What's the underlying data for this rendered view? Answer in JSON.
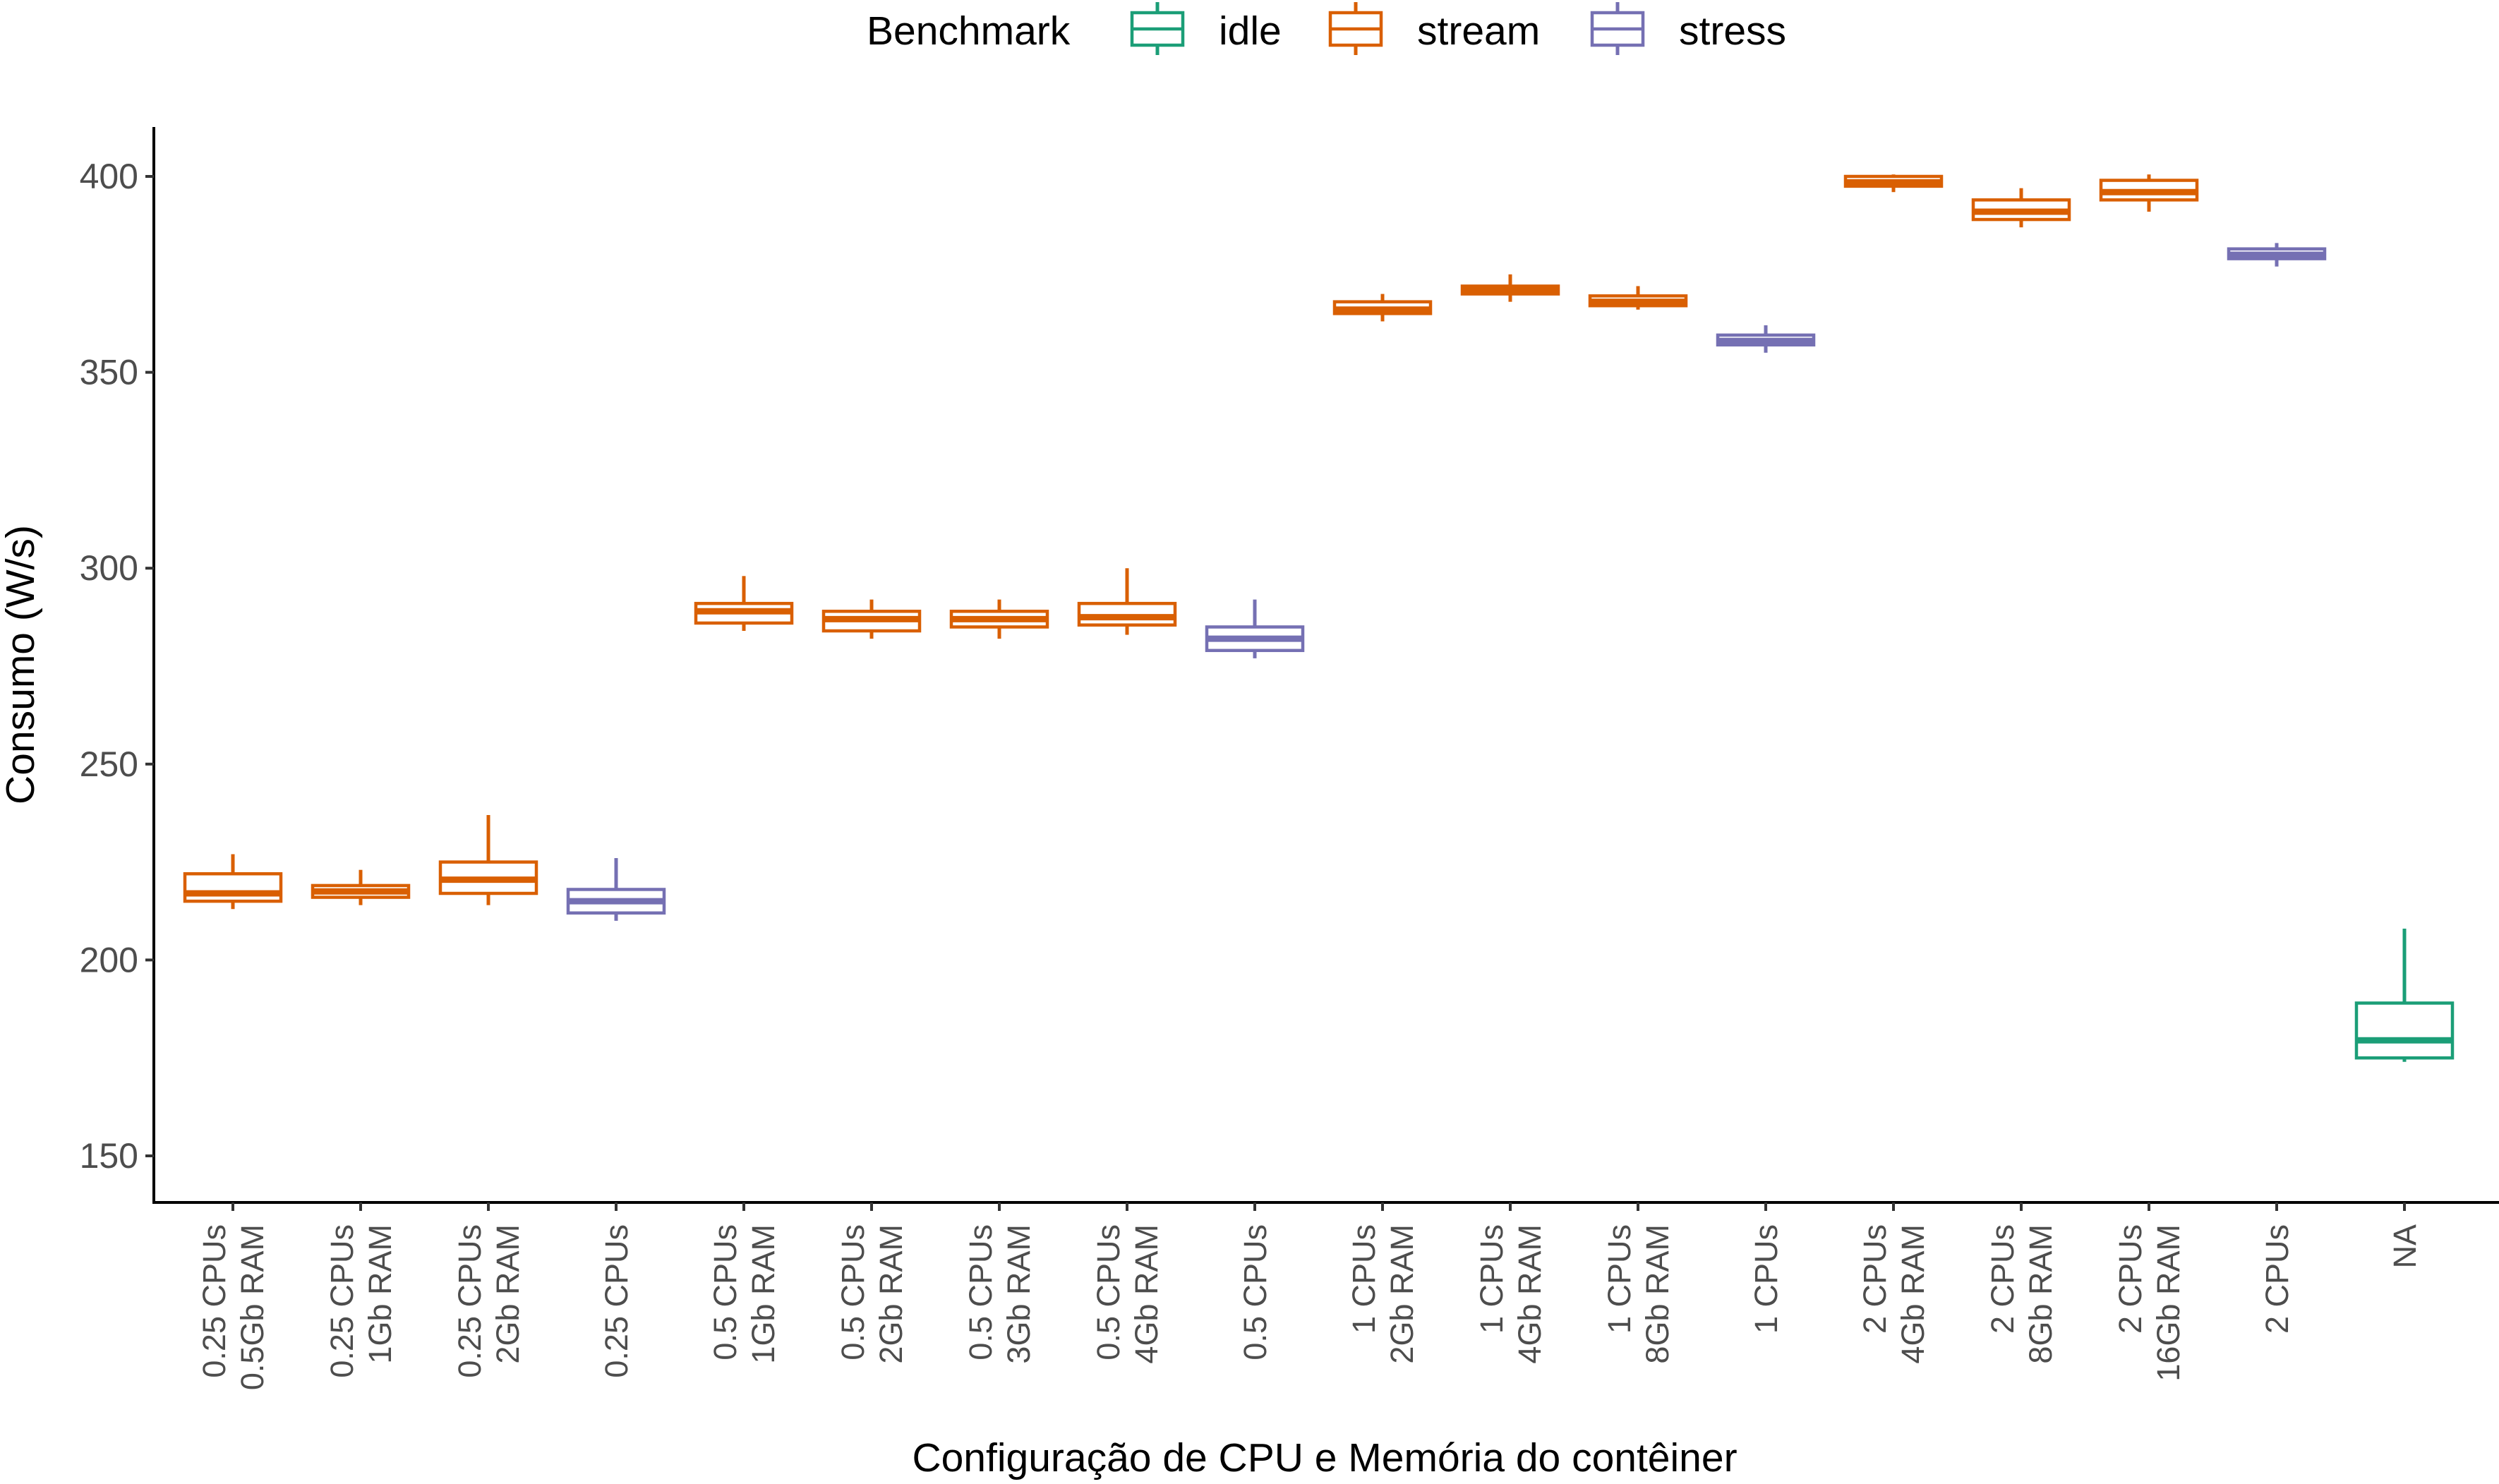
{
  "chart_data": {
    "type": "boxplot",
    "title": "",
    "xlabel": "Configuração de CPU e Memória do contêiner",
    "ylabel": "Consumo (W/s)",
    "ylim": [
      137,
      411
    ],
    "yticks": [
      150,
      200,
      250,
      300,
      350,
      400
    ],
    "grid": false,
    "legend": {
      "title": "Benchmark",
      "placement": "top",
      "entries": [
        {
          "name": "idle",
          "color": "#1b9e77"
        },
        {
          "name": "stream",
          "color": "#d95f02"
        },
        {
          "name": "stress",
          "color": "#7570b3"
        }
      ]
    },
    "categories": [
      {
        "lines": [
          "0.25 CPUs",
          "0.5Gb RAM"
        ],
        "benchmark": "stream",
        "min": 213,
        "q1": 215,
        "median": 217,
        "q3": 222,
        "max": 227
      },
      {
        "lines": [
          "0.25 CPUs",
          "1Gb RAM"
        ],
        "benchmark": "stream",
        "min": 214,
        "q1": 216,
        "median": 217.5,
        "q3": 219,
        "max": 223
      },
      {
        "lines": [
          "0.25 CPUs",
          "2Gb RAM"
        ],
        "benchmark": "stream",
        "min": 214,
        "q1": 217,
        "median": 220.5,
        "q3": 225,
        "max": 237
      },
      {
        "lines": [
          "0.25 CPUs"
        ],
        "benchmark": "stress",
        "min": 210,
        "q1": 212,
        "median": 215,
        "q3": 218,
        "max": 226
      },
      {
        "lines": [
          "0.5 CPUs",
          "1Gb RAM"
        ],
        "benchmark": "stream",
        "min": 284,
        "q1": 286,
        "median": 289,
        "q3": 291,
        "max": 298
      },
      {
        "lines": [
          "0.5 CPUs",
          "2Gb RAM"
        ],
        "benchmark": "stream",
        "min": 282,
        "q1": 284,
        "median": 287,
        "q3": 289,
        "max": 292
      },
      {
        "lines": [
          "0.5 CPUs",
          "3Gb RAM"
        ],
        "benchmark": "stream",
        "min": 282,
        "q1": 285,
        "median": 287,
        "q3": 289,
        "max": 292
      },
      {
        "lines": [
          "0.5 CPUs",
          "4Gb RAM"
        ],
        "benchmark": "stream",
        "min": 283,
        "q1": 285.5,
        "median": 287.5,
        "q3": 291,
        "max": 300
      },
      {
        "lines": [
          "0.5 CPUs"
        ],
        "benchmark": "stress",
        "min": 277,
        "q1": 279,
        "median": 282,
        "q3": 285,
        "max": 292
      },
      {
        "lines": [
          "1 CPUs",
          "2Gb RAM"
        ],
        "benchmark": "stream",
        "min": 363,
        "q1": 365,
        "median": 366,
        "q3": 368,
        "max": 370
      },
      {
        "lines": [
          "1 CPUs",
          "4Gb RAM"
        ],
        "benchmark": "stream",
        "min": 368,
        "q1": 370,
        "median": 371,
        "q3": 372,
        "max": 375
      },
      {
        "lines": [
          "1 CPUs",
          "8Gb RAM"
        ],
        "benchmark": "stream",
        "min": 366,
        "q1": 367,
        "median": 368,
        "q3": 369.5,
        "max": 372
      },
      {
        "lines": [
          "1 CPUs"
        ],
        "benchmark": "stress",
        "min": 355,
        "q1": 357,
        "median": 358,
        "q3": 359.5,
        "max": 362
      },
      {
        "lines": [
          "2 CPUs",
          "4Gb RAM"
        ],
        "benchmark": "stream",
        "min": 396,
        "q1": 397.5,
        "median": 398.5,
        "q3": 400,
        "max": 400.5
      },
      {
        "lines": [
          "2 CPUs",
          "8Gb RAM"
        ],
        "benchmark": "stream",
        "min": 387,
        "q1": 389,
        "median": 391,
        "q3": 394,
        "max": 397
      },
      {
        "lines": [
          "2 CPUs",
          "16Gb RAM"
        ],
        "benchmark": "stream",
        "min": 391,
        "q1": 394,
        "median": 396,
        "q3": 399,
        "max": 400.5
      },
      {
        "lines": [
          "2 CPUs"
        ],
        "benchmark": "stress",
        "min": 377,
        "q1": 379,
        "median": 380,
        "q3": 381.5,
        "max": 383
      },
      {
        "lines": [
          "NA"
        ],
        "benchmark": "idle",
        "min": 174,
        "q1": 175,
        "median": 179.5,
        "q3": 189,
        "max": 208
      }
    ]
  }
}
